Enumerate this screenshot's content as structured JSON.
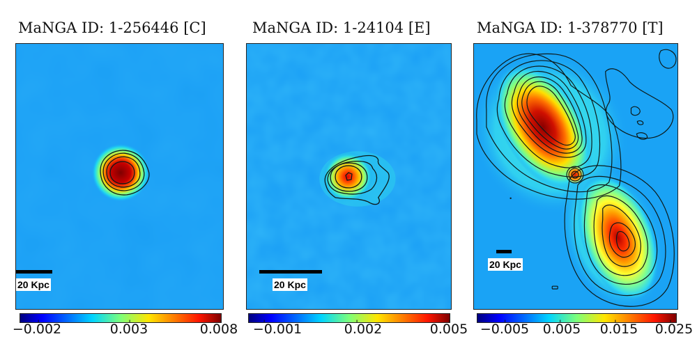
{
  "chart_data": [
    {
      "type": "heatmap",
      "title": "MaNGA ID: 1-256446 [C]",
      "xlabel": "",
      "ylabel": "",
      "colormap": "jet",
      "colorbar": {
        "range": [
          -0.003,
          0.008
        ],
        "ticks": [
          -0.002,
          0.003,
          0.008
        ],
        "tick_labels": [
          "−0.002",
          "0.003",
          "0.008"
        ],
        "orientation": "horizontal",
        "placement": "bottom"
      },
      "scale_bar_label": "20 Kpc",
      "features": [
        {
          "kind": "compact-core",
          "peak_value": 0.008,
          "location": "center",
          "contour_levels": 5
        }
      ],
      "background_value": 0.0,
      "contours": true,
      "grid": false
    },
    {
      "type": "heatmap",
      "title": "MaNGA ID: 1-24104 [E]",
      "xlabel": "",
      "ylabel": "",
      "colormap": "jet",
      "colorbar": {
        "range": [
          -0.0015,
          0.005
        ],
        "ticks": [
          -0.001,
          0.002,
          0.005
        ],
        "tick_labels": [
          "−0.001",
          "0.002",
          "0.005"
        ],
        "orientation": "horizontal",
        "placement": "bottom"
      },
      "scale_bar_label": "20 Kpc",
      "features": [
        {
          "kind": "compact-core",
          "peak_value": 0.0042,
          "location": "center",
          "contour_levels": 5
        }
      ],
      "background_value": 0.0,
      "contours": true,
      "grid": false
    },
    {
      "type": "heatmap",
      "title": "MaNGA ID: 1-378770 [T]",
      "xlabel": "",
      "ylabel": "",
      "colormap": "jet",
      "colorbar": {
        "range": [
          -0.01,
          0.026
        ],
        "ticks": [
          -0.005,
          0.005,
          0.015,
          0.025
        ],
        "tick_labels": [
          "−0.005",
          "0.005",
          "0.015",
          "0.025"
        ],
        "orientation": "horizontal",
        "placement": "bottom"
      },
      "scale_bar_label": "20 Kpc",
      "features": [
        {
          "kind": "extended-lobe",
          "peak_value": 0.025,
          "location": "upper-left"
        },
        {
          "kind": "compact-knot",
          "peak_value": 0.018,
          "location": "center"
        },
        {
          "kind": "extended-lobe",
          "peak_value": 0.023,
          "location": "lower-right"
        },
        {
          "kind": "faint-emission",
          "peak_value": 0.004,
          "location": "upper-right"
        }
      ],
      "background_value": 0.0,
      "contours": true,
      "grid": false
    }
  ]
}
